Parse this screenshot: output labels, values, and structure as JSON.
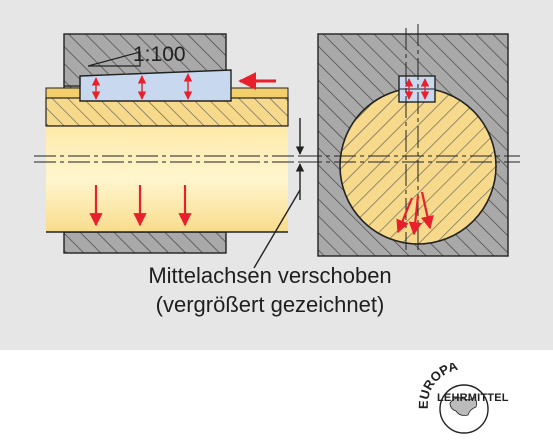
{
  "diagram": {
    "taper_label": "1:100",
    "caption_line1": "Mittelachsen verschoben",
    "caption_line2": "(vergrößert gezeichnet)"
  },
  "logo": {
    "arc_text": "EUROPA",
    "name": "LEHRMITTEL"
  },
  "colors": {
    "panel": "#e6e6e6",
    "hatch_gray": "#a8a8a8",
    "shaft_yellow": "#fbe3a0",
    "key_blue": "#c8d8ee",
    "arrow_red": "#e8202b",
    "line": "#222222"
  },
  "icons": [
    "force-arrow-icon",
    "dimension-arrow-icon",
    "europa-lehrmittel-logo"
  ]
}
